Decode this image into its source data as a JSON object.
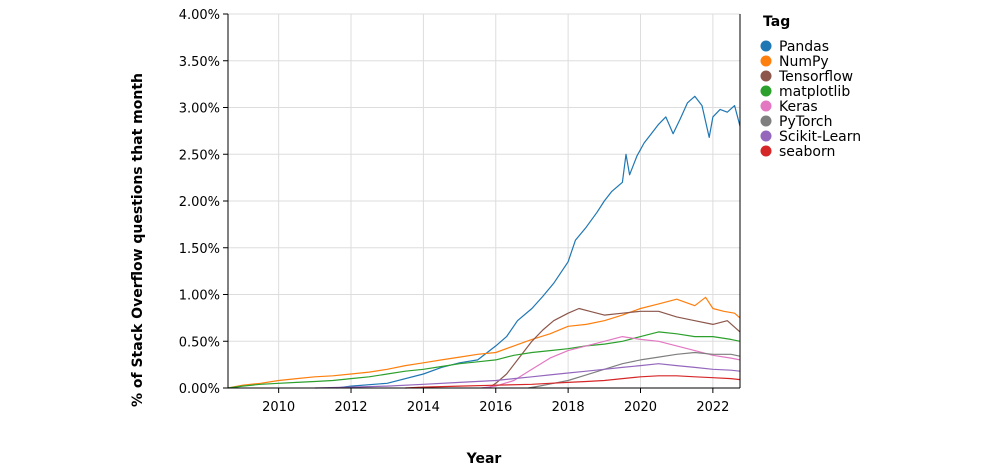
{
  "chart_data": {
    "type": "line",
    "title": "",
    "xlabel": "Year",
    "ylabel": "% of Stack Overflow questions that month",
    "xlim": [
      2008.6,
      2022.75
    ],
    "ylim": [
      0,
      4.0
    ],
    "x_ticks": [
      2010,
      2012,
      2014,
      2016,
      2018,
      2020,
      2022
    ],
    "x_tick_labels": [
      "2010",
      "2012",
      "2014",
      "2016",
      "2018",
      "2020",
      "2022"
    ],
    "y_ticks": [
      0,
      0.5,
      1.0,
      1.5,
      2.0,
      2.5,
      3.0,
      3.5,
      4.0
    ],
    "y_tick_labels": [
      "0.00%",
      "0.50%",
      "1.00%",
      "1.50%",
      "2.00%",
      "2.50%",
      "3.00%",
      "3.50%",
      "4.00%"
    ],
    "grid": true,
    "legend": {
      "title": "Tag",
      "position": "right"
    },
    "series": [
      {
        "name": "Pandas",
        "color": "#1f77b4",
        "points": [
          [
            2011.6,
            0.0
          ],
          [
            2012.0,
            0.02
          ],
          [
            2013.0,
            0.05
          ],
          [
            2014.0,
            0.15
          ],
          [
            2014.5,
            0.22
          ],
          [
            2015.0,
            0.27
          ],
          [
            2015.5,
            0.3
          ],
          [
            2016.0,
            0.45
          ],
          [
            2016.3,
            0.55
          ],
          [
            2016.6,
            0.72
          ],
          [
            2017.0,
            0.85
          ],
          [
            2017.3,
            0.98
          ],
          [
            2017.6,
            1.12
          ],
          [
            2018.0,
            1.35
          ],
          [
            2018.2,
            1.58
          ],
          [
            2018.5,
            1.72
          ],
          [
            2018.8,
            1.88
          ],
          [
            2019.0,
            2.0
          ],
          [
            2019.2,
            2.1
          ],
          [
            2019.5,
            2.2
          ],
          [
            2019.6,
            2.5
          ],
          [
            2019.7,
            2.28
          ],
          [
            2019.9,
            2.48
          ],
          [
            2020.1,
            2.62
          ],
          [
            2020.3,
            2.72
          ],
          [
            2020.5,
            2.82
          ],
          [
            2020.7,
            2.9
          ],
          [
            2020.9,
            2.72
          ],
          [
            2021.1,
            2.88
          ],
          [
            2021.3,
            3.05
          ],
          [
            2021.5,
            3.12
          ],
          [
            2021.7,
            3.02
          ],
          [
            2021.9,
            2.68
          ],
          [
            2022.0,
            2.9
          ],
          [
            2022.2,
            2.98
          ],
          [
            2022.4,
            2.95
          ],
          [
            2022.6,
            3.02
          ],
          [
            2022.75,
            2.8
          ]
        ]
      },
      {
        "name": "NumPy",
        "color": "#ff7f0e",
        "points": [
          [
            2008.6,
            0.0
          ],
          [
            2009.0,
            0.03
          ],
          [
            2009.5,
            0.05
          ],
          [
            2010.0,
            0.08
          ],
          [
            2010.5,
            0.1
          ],
          [
            2011.0,
            0.12
          ],
          [
            2011.5,
            0.13
          ],
          [
            2012.0,
            0.15
          ],
          [
            2012.5,
            0.17
          ],
          [
            2013.0,
            0.2
          ],
          [
            2013.5,
            0.24
          ],
          [
            2014.0,
            0.27
          ],
          [
            2014.5,
            0.3
          ],
          [
            2015.0,
            0.33
          ],
          [
            2015.5,
            0.36
          ],
          [
            2016.0,
            0.38
          ],
          [
            2016.5,
            0.45
          ],
          [
            2017.0,
            0.52
          ],
          [
            2017.5,
            0.58
          ],
          [
            2018.0,
            0.66
          ],
          [
            2018.5,
            0.68
          ],
          [
            2019.0,
            0.72
          ],
          [
            2019.5,
            0.78
          ],
          [
            2020.0,
            0.85
          ],
          [
            2020.5,
            0.9
          ],
          [
            2021.0,
            0.95
          ],
          [
            2021.5,
            0.88
          ],
          [
            2021.8,
            0.97
          ],
          [
            2022.0,
            0.85
          ],
          [
            2022.3,
            0.82
          ],
          [
            2022.6,
            0.8
          ],
          [
            2022.75,
            0.75
          ]
        ]
      },
      {
        "name": "Tensorflow",
        "color": "#8c564b",
        "points": [
          [
            2015.8,
            0.0
          ],
          [
            2016.0,
            0.05
          ],
          [
            2016.3,
            0.15
          ],
          [
            2016.6,
            0.3
          ],
          [
            2017.0,
            0.5
          ],
          [
            2017.3,
            0.62
          ],
          [
            2017.6,
            0.72
          ],
          [
            2018.0,
            0.8
          ],
          [
            2018.3,
            0.85
          ],
          [
            2018.6,
            0.82
          ],
          [
            2019.0,
            0.78
          ],
          [
            2019.5,
            0.8
          ],
          [
            2020.0,
            0.82
          ],
          [
            2020.5,
            0.82
          ],
          [
            2021.0,
            0.76
          ],
          [
            2021.5,
            0.72
          ],
          [
            2022.0,
            0.68
          ],
          [
            2022.4,
            0.72
          ],
          [
            2022.75,
            0.6
          ]
        ]
      },
      {
        "name": "matplotlib",
        "color": "#2ca02c",
        "points": [
          [
            2008.6,
            0.0
          ],
          [
            2009.0,
            0.02
          ],
          [
            2009.5,
            0.04
          ],
          [
            2010.0,
            0.05
          ],
          [
            2010.5,
            0.06
          ],
          [
            2011.0,
            0.07
          ],
          [
            2011.5,
            0.08
          ],
          [
            2012.0,
            0.1
          ],
          [
            2012.5,
            0.12
          ],
          [
            2013.0,
            0.15
          ],
          [
            2013.5,
            0.18
          ],
          [
            2014.0,
            0.2
          ],
          [
            2014.5,
            0.23
          ],
          [
            2015.0,
            0.26
          ],
          [
            2015.5,
            0.28
          ],
          [
            2016.0,
            0.3
          ],
          [
            2016.5,
            0.35
          ],
          [
            2017.0,
            0.38
          ],
          [
            2017.5,
            0.4
          ],
          [
            2018.0,
            0.42
          ],
          [
            2018.5,
            0.45
          ],
          [
            2019.0,
            0.47
          ],
          [
            2019.5,
            0.5
          ],
          [
            2020.0,
            0.55
          ],
          [
            2020.5,
            0.6
          ],
          [
            2021.0,
            0.58
          ],
          [
            2021.5,
            0.55
          ],
          [
            2022.0,
            0.55
          ],
          [
            2022.5,
            0.52
          ],
          [
            2022.75,
            0.5
          ]
        ]
      },
      {
        "name": "Keras",
        "color": "#e377c2",
        "points": [
          [
            2015.6,
            0.0
          ],
          [
            2016.0,
            0.02
          ],
          [
            2016.5,
            0.08
          ],
          [
            2017.0,
            0.2
          ],
          [
            2017.5,
            0.32
          ],
          [
            2018.0,
            0.4
          ],
          [
            2018.5,
            0.45
          ],
          [
            2019.0,
            0.5
          ],
          [
            2019.5,
            0.55
          ],
          [
            2020.0,
            0.52
          ],
          [
            2020.5,
            0.5
          ],
          [
            2021.0,
            0.45
          ],
          [
            2021.5,
            0.4
          ],
          [
            2022.0,
            0.35
          ],
          [
            2022.5,
            0.32
          ],
          [
            2022.75,
            0.3
          ]
        ]
      },
      {
        "name": "PyTorch",
        "color": "#7f7f7f",
        "points": [
          [
            2016.9,
            0.0
          ],
          [
            2017.2,
            0.02
          ],
          [
            2017.6,
            0.05
          ],
          [
            2018.0,
            0.08
          ],
          [
            2018.5,
            0.14
          ],
          [
            2019.0,
            0.2
          ],
          [
            2019.5,
            0.26
          ],
          [
            2020.0,
            0.3
          ],
          [
            2020.5,
            0.33
          ],
          [
            2021.0,
            0.36
          ],
          [
            2021.5,
            0.38
          ],
          [
            2022.0,
            0.36
          ],
          [
            2022.5,
            0.36
          ],
          [
            2022.75,
            0.34
          ]
        ]
      },
      {
        "name": "Scikit-Learn",
        "color": "#9467bd",
        "points": [
          [
            2011.0,
            0.0
          ],
          [
            2012.0,
            0.01
          ],
          [
            2013.0,
            0.02
          ],
          [
            2014.0,
            0.04
          ],
          [
            2015.0,
            0.06
          ],
          [
            2016.0,
            0.08
          ],
          [
            2016.5,
            0.1
          ],
          [
            2017.0,
            0.12
          ],
          [
            2017.5,
            0.14
          ],
          [
            2018.0,
            0.16
          ],
          [
            2018.5,
            0.18
          ],
          [
            2019.0,
            0.2
          ],
          [
            2019.5,
            0.22
          ],
          [
            2020.0,
            0.24
          ],
          [
            2020.5,
            0.26
          ],
          [
            2021.0,
            0.24
          ],
          [
            2021.5,
            0.22
          ],
          [
            2022.0,
            0.2
          ],
          [
            2022.5,
            0.19
          ],
          [
            2022.75,
            0.18
          ]
        ]
      },
      {
        "name": "seaborn",
        "color": "#d62728",
        "points": [
          [
            2013.5,
            0.0
          ],
          [
            2014.0,
            0.01
          ],
          [
            2015.0,
            0.02
          ],
          [
            2016.0,
            0.03
          ],
          [
            2017.0,
            0.04
          ],
          [
            2017.5,
            0.05
          ],
          [
            2018.0,
            0.06
          ],
          [
            2018.5,
            0.07
          ],
          [
            2019.0,
            0.08
          ],
          [
            2019.5,
            0.1
          ],
          [
            2020.0,
            0.12
          ],
          [
            2020.5,
            0.13
          ],
          [
            2021.0,
            0.13
          ],
          [
            2021.5,
            0.12
          ],
          [
            2022.0,
            0.11
          ],
          [
            2022.5,
            0.1
          ],
          [
            2022.75,
            0.09
          ]
        ]
      }
    ]
  }
}
